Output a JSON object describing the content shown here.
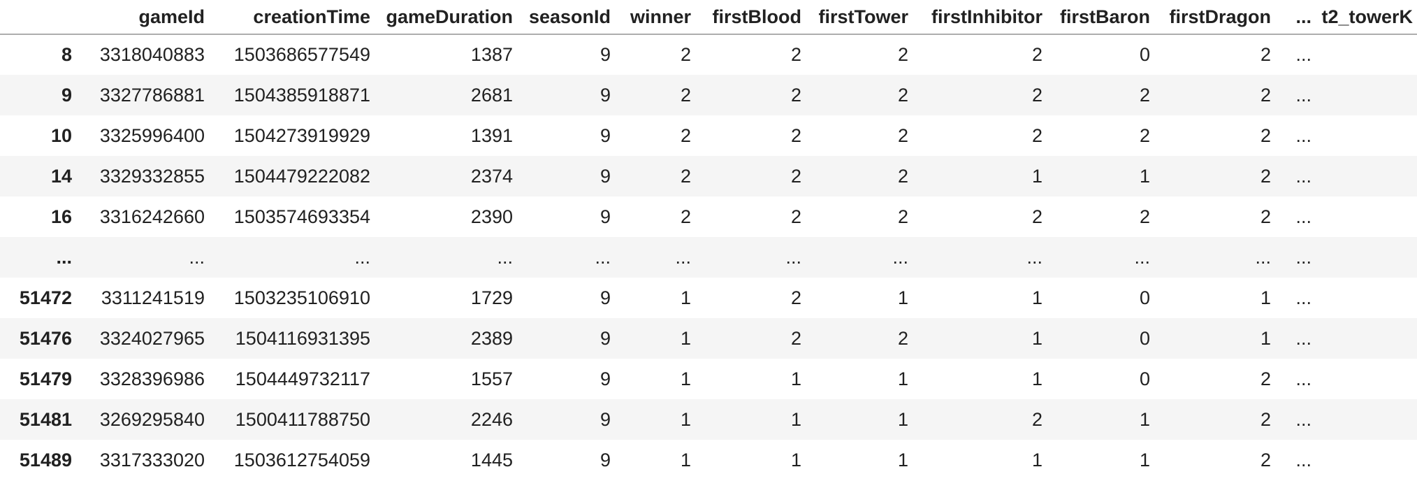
{
  "colors": {
    "background": "#ffffff",
    "stripe": "#f5f5f5",
    "header_border": "#adadad",
    "text": "#212121"
  },
  "table": {
    "columns": [
      "",
      "gameId",
      "creationTime",
      "gameDuration",
      "seasonId",
      "winner",
      "firstBlood",
      "firstTower",
      "firstInhibitor",
      "firstBaron",
      "firstDragon",
      "...",
      "t2_towerK"
    ],
    "rows": [
      {
        "index": "8",
        "cells": [
          "3318040883",
          "1503686577549",
          "1387",
          "9",
          "2",
          "2",
          "2",
          "2",
          "0",
          "2",
          "...",
          ""
        ]
      },
      {
        "index": "9",
        "cells": [
          "3327786881",
          "1504385918871",
          "2681",
          "9",
          "2",
          "2",
          "2",
          "2",
          "2",
          "2",
          "...",
          ""
        ]
      },
      {
        "index": "10",
        "cells": [
          "3325996400",
          "1504273919929",
          "1391",
          "9",
          "2",
          "2",
          "2",
          "2",
          "2",
          "2",
          "...",
          ""
        ]
      },
      {
        "index": "14",
        "cells": [
          "3329332855",
          "1504479222082",
          "2374",
          "9",
          "2",
          "2",
          "2",
          "1",
          "1",
          "2",
          "...",
          ""
        ]
      },
      {
        "index": "16",
        "cells": [
          "3316242660",
          "1503574693354",
          "2390",
          "9",
          "2",
          "2",
          "2",
          "2",
          "2",
          "2",
          "...",
          ""
        ]
      },
      {
        "index": "...",
        "cells": [
          "...",
          "...",
          "...",
          "...",
          "...",
          "...",
          "...",
          "...",
          "...",
          "...",
          "...",
          ""
        ]
      },
      {
        "index": "51472",
        "cells": [
          "3311241519",
          "1503235106910",
          "1729",
          "9",
          "1",
          "2",
          "1",
          "1",
          "0",
          "1",
          "...",
          ""
        ]
      },
      {
        "index": "51476",
        "cells": [
          "3324027965",
          "1504116931395",
          "2389",
          "9",
          "1",
          "2",
          "2",
          "1",
          "0",
          "1",
          "...",
          ""
        ]
      },
      {
        "index": "51479",
        "cells": [
          "3328396986",
          "1504449732117",
          "1557",
          "9",
          "1",
          "1",
          "1",
          "1",
          "0",
          "2",
          "...",
          ""
        ]
      },
      {
        "index": "51481",
        "cells": [
          "3269295840",
          "1500411788750",
          "2246",
          "9",
          "1",
          "1",
          "1",
          "2",
          "1",
          "2",
          "...",
          ""
        ]
      },
      {
        "index": "51489",
        "cells": [
          "3317333020",
          "1503612754059",
          "1445",
          "9",
          "1",
          "1",
          "1",
          "1",
          "1",
          "2",
          "...",
          ""
        ]
      }
    ]
  }
}
